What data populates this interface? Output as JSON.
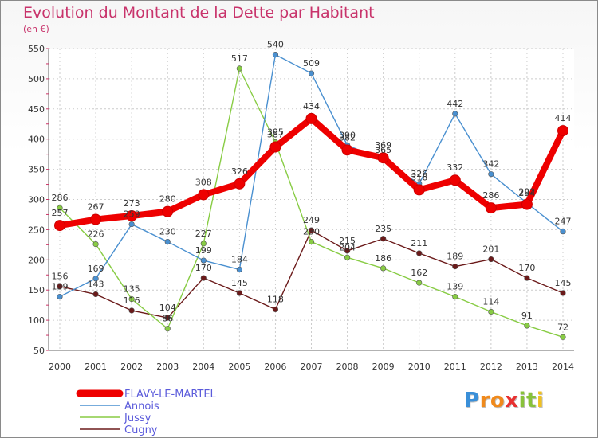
{
  "chart_data": {
    "type": "line",
    "title": "Evolution du Montant de la Dette par Habitant",
    "subtitle": "(en €)",
    "x": [
      "2000",
      "2001",
      "2002",
      "2003",
      "2004",
      "2005",
      "2006",
      "2007",
      "2008",
      "2009",
      "2010",
      "2011",
      "2012",
      "2013",
      "2014"
    ],
    "ylim": [
      50,
      550
    ],
    "yticks": [
      50,
      100,
      150,
      200,
      250,
      300,
      350,
      400,
      450,
      500,
      550
    ],
    "grid": true,
    "legend_position": "bottom-left",
    "series": [
      {
        "name": "FLAVY-LE-MARTEL",
        "color": "#ee0000",
        "values": [
          257,
          267,
          273,
          280,
          308,
          326,
          387,
          434,
          382,
          369,
          316,
          332,
          286,
          292,
          414
        ]
      },
      {
        "name": "Annois",
        "color": "#4a90d0",
        "values": [
          139,
          169,
          259,
          230,
          199,
          184,
          540,
          509,
          390,
          365,
          326,
          442,
          342,
          294,
          247
        ]
      },
      {
        "name": "Jussy",
        "color": "#88cc44",
        "values": [
          286,
          226,
          135,
          86,
          227,
          517,
          395,
          230,
          204,
          186,
          162,
          139,
          114,
          91,
          72
        ]
      },
      {
        "name": "Cugny",
        "color": "#6b1a1a",
        "values": [
          156,
          143,
          116,
          104,
          170,
          145,
          118,
          249,
          215,
          235,
          211,
          189,
          201,
          170,
          145
        ]
      }
    ]
  },
  "logo": {
    "letters": [
      "P",
      "r",
      "o",
      "x",
      "i",
      "t",
      "i"
    ],
    "colors": [
      "#3a8fd8",
      "#f08a1c",
      "#f08a1c",
      "#e83030",
      "#88c23a",
      "#88c23a",
      "#f0c020"
    ]
  }
}
